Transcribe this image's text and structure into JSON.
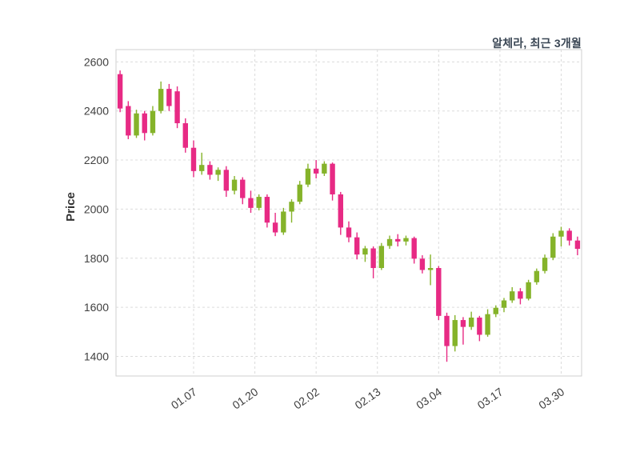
{
  "header": {
    "title": "알체라, 최근 3개월"
  },
  "colors": {
    "up": "#85b32a",
    "down": "#e72a84",
    "grid": "#dcdcdc",
    "border": "#cfcfcf",
    "tick_text": "#404040",
    "title_text": "#3a4654"
  },
  "chart_data": {
    "type": "candlestick",
    "title": "알체라, 최근 3개월",
    "xlabel": "",
    "ylabel": "Price",
    "yticks": [
      1400,
      1600,
      1800,
      2000,
      2200,
      2400,
      2600
    ],
    "ylim": [
      1320,
      2650
    ],
    "xtick_labels": [
      "01.07",
      "01.20",
      "02.02",
      "02.13",
      "03.04",
      "03.17",
      "03.30"
    ],
    "xtick_indices": [
      9,
      16.5,
      24,
      31.5,
      39,
      46.5,
      54
    ],
    "grid": true,
    "legend": "none",
    "series_note": "each candle is [open, high, low, close]; pink = down day, green = up day",
    "candles": [
      [
        2550,
        2565,
        2395,
        2410
      ],
      [
        2420,
        2440,
        2285,
        2300
      ],
      [
        2300,
        2405,
        2290,
        2390
      ],
      [
        2390,
        2400,
        2280,
        2310
      ],
      [
        2310,
        2420,
        2300,
        2400
      ],
      [
        2400,
        2520,
        2390,
        2490
      ],
      [
        2490,
        2510,
        2400,
        2420
      ],
      [
        2480,
        2500,
        2330,
        2350
      ],
      [
        2350,
        2370,
        2230,
        2250
      ],
      [
        2250,
        2280,
        2130,
        2155
      ],
      [
        2155,
        2230,
        2140,
        2180
      ],
      [
        2180,
        2195,
        2120,
        2140
      ],
      [
        2140,
        2170,
        2115,
        2160
      ],
      [
        2160,
        2175,
        2050,
        2075
      ],
      [
        2075,
        2135,
        2060,
        2120
      ],
      [
        2120,
        2130,
        2020,
        2045
      ],
      [
        2045,
        2075,
        1985,
        2005
      ],
      [
        2005,
        2060,
        1995,
        2050
      ],
      [
        2050,
        2060,
        1925,
        1945
      ],
      [
        1945,
        1985,
        1890,
        1905
      ],
      [
        1905,
        2005,
        1895,
        1990
      ],
      [
        1990,
        2040,
        1945,
        2030
      ],
      [
        2030,
        2115,
        2020,
        2100
      ],
      [
        2100,
        2185,
        2090,
        2165
      ],
      [
        2165,
        2200,
        2125,
        2145
      ],
      [
        2145,
        2195,
        2135,
        2185
      ],
      [
        2185,
        2190,
        2035,
        2060
      ],
      [
        2060,
        2070,
        1895,
        1925
      ],
      [
        1925,
        1950,
        1865,
        1885
      ],
      [
        1885,
        1905,
        1795,
        1815
      ],
      [
        1815,
        1850,
        1785,
        1840
      ],
      [
        1840,
        1848,
        1718,
        1760
      ],
      [
        1760,
        1862,
        1752,
        1850
      ],
      [
        1850,
        1892,
        1838,
        1878
      ],
      [
        1878,
        1898,
        1848,
        1868
      ],
      [
        1868,
        1892,
        1852,
        1882
      ],
      [
        1882,
        1888,
        1778,
        1798
      ],
      [
        1798,
        1812,
        1738,
        1752
      ],
      [
        1752,
        1815,
        1690,
        1760
      ],
      [
        1760,
        1768,
        1548,
        1565
      ],
      [
        1565,
        1578,
        1378,
        1442
      ],
      [
        1442,
        1568,
        1420,
        1548
      ],
      [
        1548,
        1560,
        1448,
        1520
      ],
      [
        1520,
        1582,
        1508,
        1558
      ],
      [
        1558,
        1565,
        1462,
        1488
      ],
      [
        1488,
        1592,
        1480,
        1572
      ],
      [
        1572,
        1608,
        1560,
        1598
      ],
      [
        1598,
        1638,
        1580,
        1628
      ],
      [
        1628,
        1682,
        1618,
        1665
      ],
      [
        1665,
        1678,
        1612,
        1635
      ],
      [
        1635,
        1712,
        1628,
        1702
      ],
      [
        1702,
        1758,
        1692,
        1748
      ],
      [
        1748,
        1815,
        1738,
        1802
      ],
      [
        1802,
        1902,
        1792,
        1888
      ],
      [
        1888,
        1928,
        1848,
        1912
      ],
      [
        1912,
        1922,
        1852,
        1872
      ],
      [
        1872,
        1888,
        1812,
        1838
      ]
    ]
  }
}
